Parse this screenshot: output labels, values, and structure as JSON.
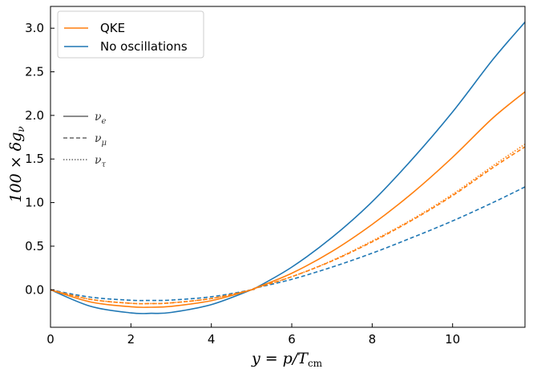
{
  "chart_data": {
    "type": "line",
    "xlabel": "y = p/T_cm",
    "ylabel": "100 × δg_ν",
    "xlim": [
      0,
      11.8
    ],
    "ylim": [
      -0.43,
      3.25
    ],
    "xticks": [
      0,
      2,
      4,
      6,
      8,
      10
    ],
    "yticks": [
      0.0,
      0.5,
      1.0,
      1.5,
      2.0,
      2.5,
      3.0
    ],
    "xtick_labels": [
      "0",
      "2",
      "4",
      "6",
      "8",
      "10"
    ],
    "ytick_labels": [
      "0.0",
      "0.5",
      "1.0",
      "1.5",
      "2.0",
      "2.5",
      "3.0"
    ],
    "grid": false,
    "legend_position": "top-left",
    "series_legend": [
      {
        "label": "QKE",
        "color": "#ff7f0e"
      },
      {
        "label": "No oscillations",
        "color": "#1f77b4"
      }
    ],
    "style_legend": [
      {
        "label": "ν_e",
        "style": "solid"
      },
      {
        "label": "ν_μ",
        "style": "dashed"
      },
      {
        "label": "ν_τ",
        "style": "dotted"
      }
    ],
    "series": [
      {
        "color": "#1f77b4",
        "style": "solid",
        "flavor": "ν_e",
        "x": [
          0,
          1,
          2,
          2.5,
          3,
          4,
          5,
          5.1,
          6,
          7,
          8,
          9,
          10,
          11,
          11.8
        ],
        "y": [
          0,
          -0.19,
          -0.265,
          -0.27,
          -0.26,
          -0.17,
          0.0,
          0.02,
          0.26,
          0.6,
          1.01,
          1.5,
          2.04,
          2.64,
          3.07
        ]
      },
      {
        "color": "#1f77b4",
        "style": "dashed",
        "flavor": "ν_μ",
        "x": [
          0,
          1,
          2,
          2.5,
          3,
          4,
          5,
          5.1,
          6,
          7,
          8,
          9,
          10,
          11,
          11.8
        ],
        "y": [
          0,
          -0.085,
          -0.12,
          -0.122,
          -0.118,
          -0.08,
          0.0,
          0.02,
          0.12,
          0.26,
          0.42,
          0.6,
          0.79,
          1.0,
          1.18
        ]
      },
      {
        "color": "#ff7f0e",
        "style": "solid",
        "flavor": "ν_e",
        "x": [
          0,
          1,
          2,
          2.5,
          3,
          4,
          5,
          5.1,
          6,
          7,
          8,
          9,
          10,
          11,
          11.8
        ],
        "y": [
          0,
          -0.14,
          -0.195,
          -0.2,
          -0.19,
          -0.125,
          0.0,
          0.02,
          0.19,
          0.44,
          0.75,
          1.11,
          1.52,
          1.97,
          2.27
        ]
      },
      {
        "color": "#ff7f0e",
        "style": "dashed",
        "flavor": "ν_μ",
        "x": [
          0,
          1,
          2,
          2.5,
          3,
          4,
          5,
          5.1,
          6,
          7,
          8,
          9,
          10,
          11,
          11.8
        ],
        "y": [
          0,
          -0.11,
          -0.155,
          -0.158,
          -0.15,
          -0.1,
          0.0,
          0.02,
          0.15,
          0.33,
          0.55,
          0.8,
          1.08,
          1.4,
          1.64
        ]
      },
      {
        "color": "#ff7f0e",
        "style": "dotted",
        "flavor": "ν_τ",
        "x": [
          0,
          1,
          2,
          2.5,
          3,
          4,
          5,
          5.1,
          6,
          7,
          8,
          9,
          10,
          11,
          11.8
        ],
        "y": [
          0,
          -0.11,
          -0.155,
          -0.158,
          -0.15,
          -0.1,
          0.0,
          0.02,
          0.15,
          0.335,
          0.56,
          0.81,
          1.095,
          1.42,
          1.67
        ]
      }
    ]
  }
}
